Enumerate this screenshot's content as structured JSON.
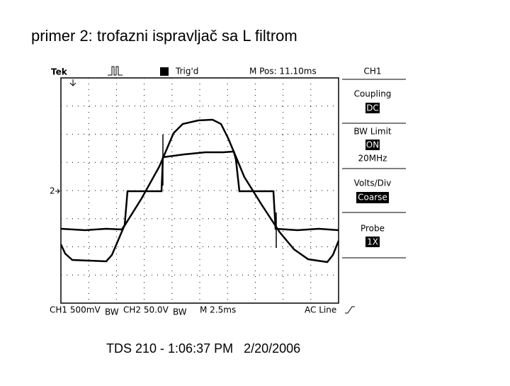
{
  "title": "primer 2: trofazni ispravljač sa L filtrom",
  "scope": {
    "brand": "Tek",
    "status": "Trig'd",
    "position": "M Pos: 11.10ms",
    "channel": "CH1",
    "menu": [
      {
        "label": "Coupling",
        "value": "DC"
      },
      {
        "label": "BW Limit",
        "value": "ON",
        "extra": "20MHz"
      },
      {
        "label": "Volts/Div",
        "value": "Coarse"
      },
      {
        "label": "Probe",
        "value": "1X"
      }
    ],
    "marker": "2",
    "readout": [
      "CH1 500mV",
      "CH2 50.0V",
      "M 2.5ms",
      "AC Line"
    ],
    "bw": "BW"
  },
  "caption": "TDS 210 - 1:06:37 PM   2/20/2006"
}
